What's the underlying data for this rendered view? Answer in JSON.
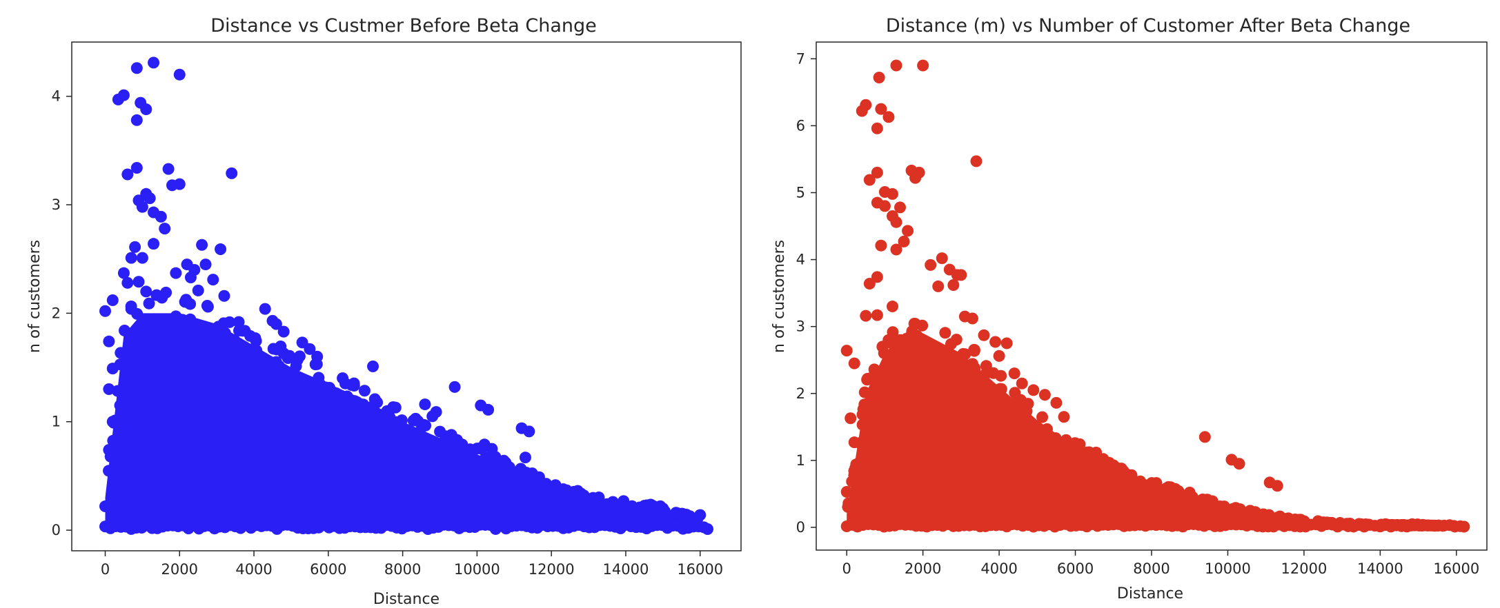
{
  "chart_data": [
    {
      "type": "scatter",
      "title": "Distance vs Custmer Before Beta Change",
      "xlabel": "Distance",
      "ylabel": "n of customers",
      "xlim": [
        -900,
        17100
      ],
      "ylim": [
        -0.19,
        4.5
      ],
      "xticks": [
        0,
        2000,
        4000,
        6000,
        8000,
        10000,
        12000,
        14000,
        16000
      ],
      "xtick_labels": [
        "0",
        "2000",
        "4000",
        "6000",
        "8000",
        "10000",
        "12000",
        "14000",
        "16000"
      ],
      "yticks": [
        0,
        1,
        2,
        3,
        4
      ],
      "ytick_labels": [
        "0",
        "1",
        "2",
        "3",
        "4"
      ],
      "color": "#2a1ff5",
      "grid": false,
      "legend": "none",
      "points": [
        [
          1300,
          4.31
        ],
        [
          850,
          4.26
        ],
        [
          2000,
          4.2
        ],
        [
          500,
          4.01
        ],
        [
          350,
          3.97
        ],
        [
          950,
          3.94
        ],
        [
          1100,
          3.88
        ],
        [
          850,
          3.78
        ],
        [
          850,
          3.34
        ],
        [
          600,
          3.28
        ],
        [
          1700,
          3.33
        ],
        [
          1800,
          3.18
        ],
        [
          2000,
          3.19
        ],
        [
          3400,
          3.29
        ],
        [
          1100,
          3.1
        ],
        [
          900,
          3.04
        ],
        [
          1200,
          3.06
        ],
        [
          1000,
          2.98
        ],
        [
          1300,
          2.93
        ],
        [
          1500,
          2.89
        ],
        [
          1600,
          2.78
        ],
        [
          1300,
          2.64
        ],
        [
          2600,
          2.63
        ],
        [
          3100,
          2.59
        ],
        [
          800,
          2.61
        ],
        [
          700,
          2.51
        ],
        [
          1000,
          2.51
        ],
        [
          2200,
          2.45
        ],
        [
          2700,
          2.45
        ],
        [
          2400,
          2.4
        ],
        [
          500,
          2.37
        ],
        [
          1900,
          2.37
        ],
        [
          2900,
          2.31
        ],
        [
          600,
          2.28
        ],
        [
          900,
          2.29
        ],
        [
          2300,
          2.33
        ],
        [
          1100,
          2.2
        ],
        [
          2500,
          2.21
        ],
        [
          3200,
          2.16
        ],
        [
          200,
          2.12
        ],
        [
          0,
          2.02
        ],
        [
          700,
          2.04
        ],
        [
          4300,
          2.04
        ],
        [
          4500,
          1.93
        ],
        [
          4600,
          1.9
        ],
        [
          4800,
          1.83
        ],
        [
          3600,
          1.84
        ],
        [
          3900,
          1.79
        ],
        [
          5300,
          1.73
        ],
        [
          5500,
          1.67
        ],
        [
          5700,
          1.6
        ],
        [
          4800,
          1.63
        ],
        [
          7200,
          1.51
        ],
        [
          9400,
          1.32
        ],
        [
          8600,
          1.16
        ],
        [
          8900,
          1.09
        ],
        [
          10100,
          1.15
        ],
        [
          10300,
          1.11
        ],
        [
          11200,
          0.94
        ],
        [
          11400,
          0.91
        ],
        [
          8800,
          1.05
        ],
        [
          9600,
          0.79
        ],
        [
          10200,
          0.79
        ],
        [
          10400,
          0.75
        ],
        [
          11300,
          0.67
        ],
        [
          100,
          1.74
        ],
        [
          200,
          1.49
        ],
        [
          100,
          1.3
        ],
        [
          400,
          1.15
        ],
        [
          200,
          1.0
        ],
        [
          100,
          0.74
        ],
        [
          300,
          0.52
        ],
        [
          0,
          0.22
        ],
        [
          16000,
          0.14
        ],
        [
          16200,
          0.01
        ],
        [
          15000,
          0.2
        ]
      ],
      "band": {
        "x": [
          0,
          500,
          1000,
          1500,
          2000,
          3000,
          4000,
          5000,
          6000,
          7000,
          8000,
          9000,
          10000,
          11000,
          12000,
          13000,
          14000,
          15000,
          16000
        ],
        "upper": [
          0.3,
          1.8,
          2.0,
          2.0,
          2.0,
          1.9,
          1.7,
          1.5,
          1.35,
          1.2,
          1.0,
          0.85,
          0.7,
          0.55,
          0.4,
          0.3,
          0.25,
          0.2,
          0.1
        ]
      }
    },
    {
      "type": "scatter",
      "title": "Distance (m) vs Number of Customer After Beta Change",
      "xlabel": "Distance",
      "ylabel": "n of customers",
      "xlim": [
        -800,
        16800
      ],
      "ylim": [
        -0.34,
        7.25
      ],
      "xticks": [
        0,
        2000,
        4000,
        6000,
        8000,
        10000,
        12000,
        14000,
        16000
      ],
      "xtick_labels": [
        "0",
        "2000",
        "4000",
        "6000",
        "8000",
        "10000",
        "12000",
        "14000",
        "16000"
      ],
      "yticks": [
        0,
        1,
        2,
        3,
        4,
        5,
        6,
        7
      ],
      "ytick_labels": [
        "0",
        "1",
        "2",
        "3",
        "4",
        "5",
        "6",
        "7"
      ],
      "color": "#dc3224",
      "grid": false,
      "legend": "none",
      "points": [
        [
          1300,
          6.9
        ],
        [
          2000,
          6.9
        ],
        [
          850,
          6.72
        ],
        [
          500,
          6.31
        ],
        [
          400,
          6.22
        ],
        [
          900,
          6.25
        ],
        [
          1100,
          6.13
        ],
        [
          800,
          5.96
        ],
        [
          3400,
          5.47
        ],
        [
          1700,
          5.33
        ],
        [
          1900,
          5.3
        ],
        [
          800,
          5.3
        ],
        [
          600,
          5.19
        ],
        [
          1800,
          5.22
        ],
        [
          1000,
          5.01
        ],
        [
          1200,
          4.98
        ],
        [
          800,
          4.85
        ],
        [
          1000,
          4.8
        ],
        [
          1400,
          4.78
        ],
        [
          1200,
          4.65
        ],
        [
          1300,
          4.56
        ],
        [
          1600,
          4.43
        ],
        [
          1500,
          4.27
        ],
        [
          900,
          4.21
        ],
        [
          1300,
          4.15
        ],
        [
          2500,
          4.02
        ],
        [
          2200,
          3.92
        ],
        [
          2700,
          3.85
        ],
        [
          2900,
          3.77
        ],
        [
          3000,
          3.77
        ],
        [
          800,
          3.74
        ],
        [
          600,
          3.64
        ],
        [
          2400,
          3.6
        ],
        [
          2800,
          3.62
        ],
        [
          1200,
          3.3
        ],
        [
          500,
          3.16
        ],
        [
          800,
          3.17
        ],
        [
          3100,
          3.15
        ],
        [
          3300,
          3.12
        ],
        [
          3600,
          2.87
        ],
        [
          3900,
          2.77
        ],
        [
          4200,
          2.75
        ],
        [
          4000,
          2.56
        ],
        [
          4400,
          2.3
        ],
        [
          4600,
          2.15
        ],
        [
          4900,
          2.05
        ],
        [
          5200,
          1.98
        ],
        [
          5500,
          1.86
        ],
        [
          5700,
          1.65
        ],
        [
          0,
          2.64
        ],
        [
          200,
          2.45
        ],
        [
          100,
          1.63
        ],
        [
          200,
          1.27
        ],
        [
          0,
          0.53
        ],
        [
          9400,
          1.35
        ],
        [
          10100,
          1.01
        ],
        [
          10300,
          0.95
        ],
        [
          11100,
          0.67
        ],
        [
          11300,
          0.62
        ],
        [
          8000,
          0.62
        ],
        [
          8500,
          0.6
        ],
        [
          9000,
          0.52
        ],
        [
          16200,
          0.01
        ]
      ],
      "band": {
        "x": [
          0,
          500,
          1000,
          1500,
          2000,
          3000,
          4000,
          5000,
          6000,
          7000,
          8000,
          9000,
          10000,
          11000,
          12000,
          13000,
          14000,
          15000,
          16000
        ],
        "upper": [
          0.2,
          2.0,
          2.6,
          2.9,
          2.9,
          2.6,
          2.1,
          1.6,
          1.2,
          0.9,
          0.65,
          0.45,
          0.3,
          0.18,
          0.1,
          0.06,
          0.04,
          0.03,
          0.02
        ]
      }
    }
  ]
}
